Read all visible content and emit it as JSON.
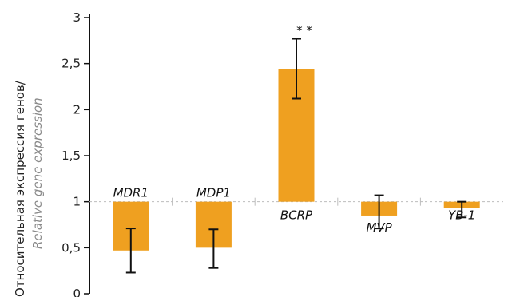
{
  "chart_data": {
    "type": "bar",
    "baseline": 1,
    "categories": [
      "MDR1",
      "MDP1",
      "BCRP",
      "MVP",
      "YB-1"
    ],
    "values": [
      0.47,
      0.5,
      2.44,
      0.85,
      0.93
    ],
    "error_low": [
      0.23,
      0.28,
      2.12,
      0.71,
      0.83
    ],
    "error_high": [
      0.71,
      0.7,
      2.77,
      1.07,
      1.0
    ],
    "ylabel": "Относительная экспрессия генов/",
    "ylabel_en": "Relative gene expression",
    "ylim": [
      0,
      3
    ],
    "yticks": [
      "0",
      "0,5",
      "1",
      "1,5",
      "2",
      "2,5",
      "3"
    ],
    "annotation": "* *",
    "annotation_index": 2,
    "bar_color": "#EFA020",
    "grid": "dashed at 1"
  }
}
